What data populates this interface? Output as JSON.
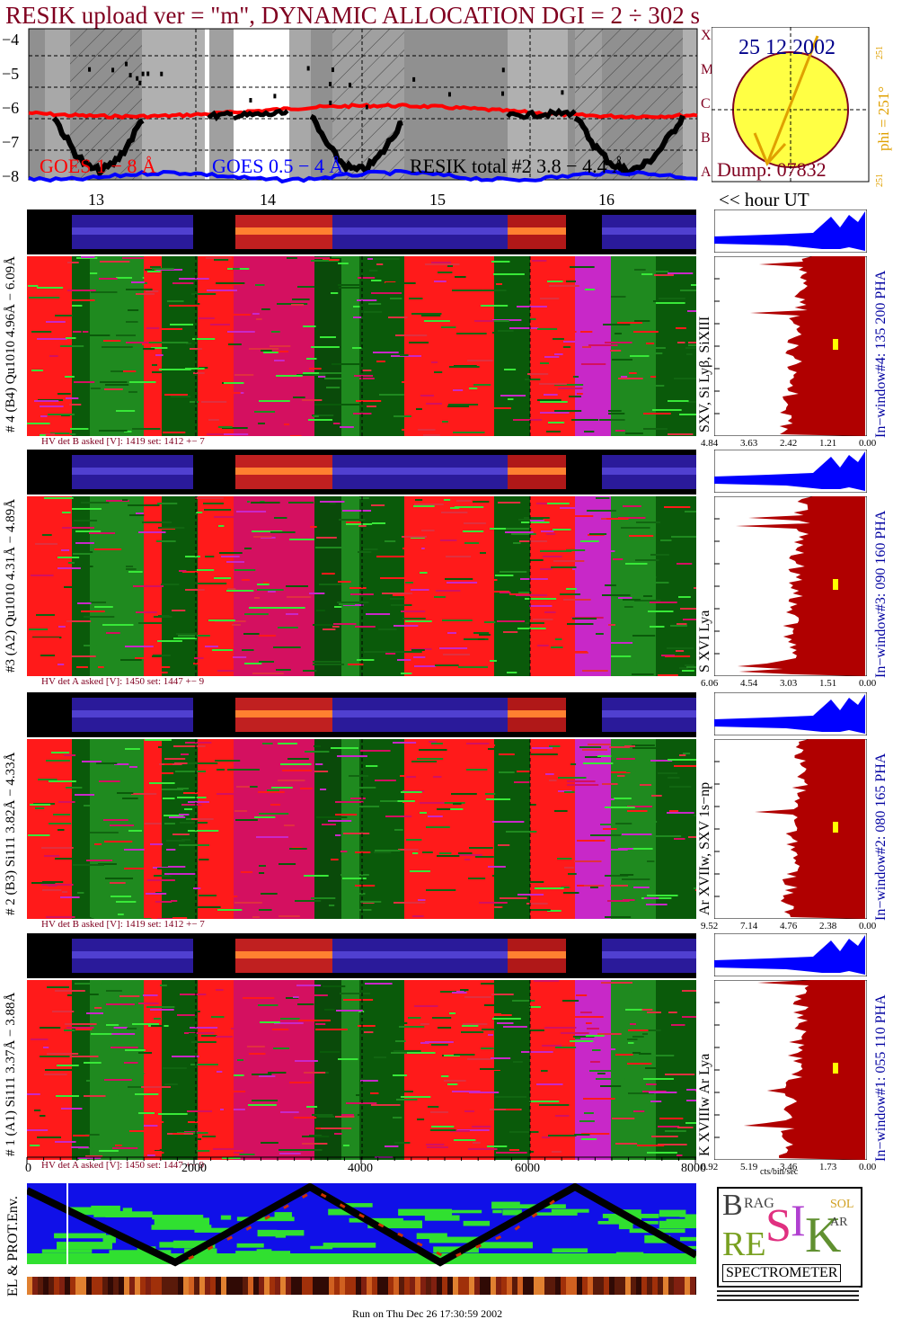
{
  "title": "RESIK upload ver = \"m\", DYNAMIC ALLOCATION  DGI =   2 ÷ 302 s",
  "colors": {
    "title": "#800020",
    "goes_long": "#ff0000",
    "goes_short": "#0000ff",
    "resik": "#000000",
    "spectrum": "#b00000",
    "pha": "#0000ff",
    "sun": "#ffff44"
  },
  "goes_panel": {
    "y_ticks": [
      "−4",
      "−5",
      "−6",
      "−7",
      "−8"
    ],
    "class_letters": [
      "X",
      "M",
      "C",
      "B",
      "A"
    ],
    "legend_long": "GOES 1 − 8 Å",
    "legend_short": "GOES 0.5 − 4 Å",
    "legend_resik": "RESIK total #2  3.8 − 4.4 Å"
  },
  "hour_axis": {
    "ticks": [
      "13",
      "14",
      "15",
      "16"
    ],
    "unit_label": "<< hour UT"
  },
  "sun_panel": {
    "date": "25 12 2002",
    "dump": "Dump: 07832",
    "phi_label": "phi = 251°",
    "phi_top": "251",
    "phi_bottom": "251"
  },
  "detectors": [
    {
      "id": "d4",
      "left_label": "# 4 (B4) Qu1010 4.96Å − 6.09Å",
      "line_label": "SXV, Si Lyβ, SiXIII",
      "window_label": "In−window#4:  135 200 PHA",
      "hv": "HV det B asked [V]:  1419 set:  1412 +−    7",
      "xticks": [
        "4.84",
        "3.63",
        "2.42",
        "1.21",
        "0.00"
      ]
    },
    {
      "id": "d3",
      "left_label": "#3 (A2) Qu1010  4.31Å − 4.89Å",
      "line_label": "S XVI Lya",
      "window_label": "In−window#3:  090 160 PHA",
      "hv": "HV det A asked [V]:  1450 set:  1447 +−    9",
      "xticks": [
        "6.06",
        "4.54",
        "3.03",
        "1.51",
        "0.00"
      ]
    },
    {
      "id": "d2",
      "left_label": "# 2 (B3) Si111  3.82Å − 4.33Å",
      "line_label": "Ar XVIIw,  SXV 1s−np",
      "window_label": "In−window#2:  080 165 PHA",
      "hv": "HV det B asked [V]:  1419 set:  1412 +−    7",
      "xticks": [
        "9.52",
        "7.14",
        "4.76",
        "2.38",
        "0.00"
      ]
    },
    {
      "id": "d1",
      "left_label": "# 1 (A1) Si111  3.37Å − 3.88Å",
      "line_label": "K XVIIIw  Ar Lya",
      "window_label": "In−window#1:  055 110 PHA",
      "hv": "HV det A asked [V]:  1450 set:  1447 +−    9",
      "xticks": [
        "6.92",
        "5.19",
        "3.46",
        "1.73",
        "0.00"
      ]
    }
  ],
  "bottom_axis": {
    "ticks": [
      "0",
      "2000",
      "4000",
      "6000",
      "8000"
    ]
  },
  "cts_label": "cts/bin/sec",
  "env_label": "EL & PROT.Env.",
  "logo": {
    "b": "B",
    "rag": "RAG",
    "re": "RE",
    "s": "S",
    "i": "I",
    "k": "K",
    "sol": "SOL",
    "ar": "AR",
    "spectrometer": "SPECTROMETER"
  },
  "footer": "Run on Thu Dec 26 17:30:59 2002"
}
